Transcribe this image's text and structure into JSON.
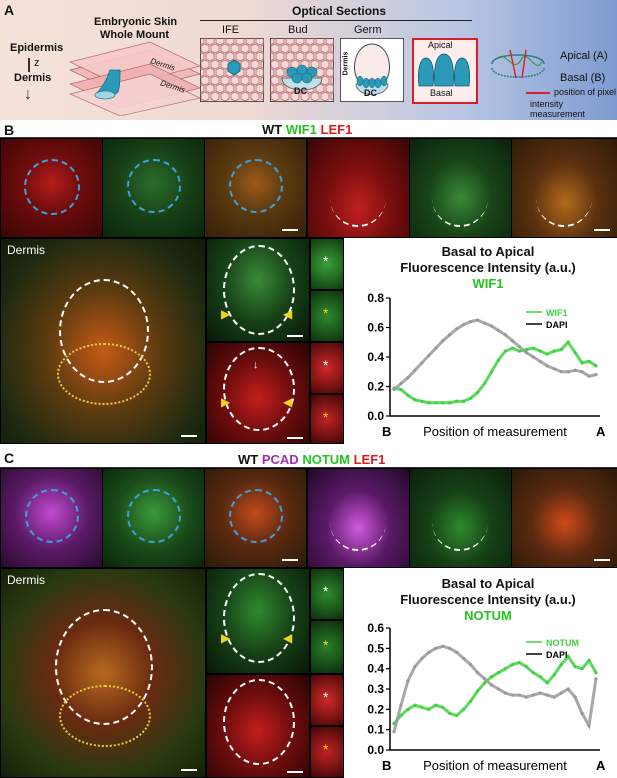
{
  "panel_a": {
    "label": "A",
    "depth_top": "Epidermis",
    "depth_axis": "z",
    "depth_bottom": "Dermis",
    "skin_title": [
      "Embryonic Skin",
      "Whole Mount"
    ],
    "dermis_labels": [
      "Dermis",
      "Dermis"
    ],
    "optical_title": "Optical Sections",
    "sections": [
      "IFE",
      "Bud",
      "Germ"
    ],
    "dc_label": "DC",
    "germ_dermis": "Dermis",
    "apical": "Apical",
    "basal": "Basal",
    "legend_apical": "Apical (A)",
    "legend_basal": "Basal  (B)",
    "legend_pixel": [
      "position of pixel",
      "intensity measurement"
    ],
    "colors": {
      "bg_left": "#f3dfd6",
      "bg_right": "#8aa6d4",
      "teal": "#2a9ab8",
      "red_line": "#d81e2a"
    }
  },
  "panel_b": {
    "label": "B",
    "header": {
      "wt": "WT",
      "m1": "WIF1",
      "m2": "LEF1"
    },
    "dermis": "Dermis",
    "asterisk": "*",
    "chart_title": [
      "Basal to Apical",
      "Fluorescence Intensity (a.u.)"
    ],
    "chart_marker": "WIF1"
  },
  "panel_c": {
    "label": "C",
    "header": {
      "wt": "WT",
      "m0": "PCAD",
      "m1": "NOTUM",
      "m2": "LEF1"
    },
    "dermis": "Dermis",
    "asterisk": "*",
    "chart_title": [
      "Basal to Apical",
      "Fluorescence Intensity (a.u.)"
    ],
    "chart_marker": "NOTUM"
  },
  "chart_data": [
    {
      "type": "line",
      "title": "Basal to Apical Fluorescence Intensity (a.u.)",
      "subtitle": "WIF1",
      "xlabel": "Position of measurement",
      "x_start_label": "B",
      "x_end_label": "A",
      "ylim": [
        0,
        0.8
      ],
      "yticks": [
        "0.0",
        "0.2",
        "0.4",
        "0.6",
        "0.8"
      ],
      "legend_position": "top-right",
      "series": [
        {
          "name": "WIF1",
          "color": "#3fd23f",
          "values": [
            0.19,
            0.18,
            0.14,
            0.11,
            0.1,
            0.09,
            0.09,
            0.09,
            0.09,
            0.1,
            0.1,
            0.12,
            0.16,
            0.22,
            0.3,
            0.38,
            0.44,
            0.46,
            0.44,
            0.45,
            0.46,
            0.44,
            0.42,
            0.44,
            0.45,
            0.5,
            0.43,
            0.36,
            0.37,
            0.34
          ]
        },
        {
          "name": "DAPI",
          "color": "#999999",
          "values": [
            0.18,
            0.22,
            0.26,
            0.31,
            0.36,
            0.41,
            0.46,
            0.51,
            0.55,
            0.59,
            0.62,
            0.64,
            0.65,
            0.63,
            0.61,
            0.58,
            0.55,
            0.51,
            0.47,
            0.43,
            0.4,
            0.37,
            0.34,
            0.32,
            0.3,
            0.3,
            0.31,
            0.3,
            0.27,
            0.28
          ]
        }
      ]
    },
    {
      "type": "line",
      "title": "Basal to Apical Fluorescence Intensity (a.u.)",
      "subtitle": "NOTUM",
      "xlabel": "Position of measurement",
      "x_start_label": "B",
      "x_end_label": "A",
      "ylim": [
        0,
        0.6
      ],
      "yticks": [
        "0.0",
        "0.1",
        "0.2",
        "0.3",
        "0.4",
        "0.5",
        "0.6"
      ],
      "legend_position": "top-right",
      "series": [
        {
          "name": "NOTUM",
          "color": "#3fd23f",
          "values": [
            0.13,
            0.17,
            0.2,
            0.22,
            0.21,
            0.2,
            0.22,
            0.21,
            0.18,
            0.17,
            0.2,
            0.24,
            0.29,
            0.33,
            0.36,
            0.38,
            0.4,
            0.42,
            0.43,
            0.41,
            0.38,
            0.36,
            0.33,
            0.37,
            0.42,
            0.46,
            0.41,
            0.4,
            0.44,
            0.38
          ]
        },
        {
          "name": "DAPI",
          "color": "#999999",
          "values": [
            0.09,
            0.22,
            0.34,
            0.41,
            0.45,
            0.48,
            0.5,
            0.51,
            0.5,
            0.48,
            0.45,
            0.42,
            0.38,
            0.35,
            0.32,
            0.3,
            0.28,
            0.27,
            0.27,
            0.26,
            0.27,
            0.28,
            0.27,
            0.26,
            0.28,
            0.3,
            0.26,
            0.18,
            0.12,
            0.35
          ]
        }
      ]
    }
  ]
}
